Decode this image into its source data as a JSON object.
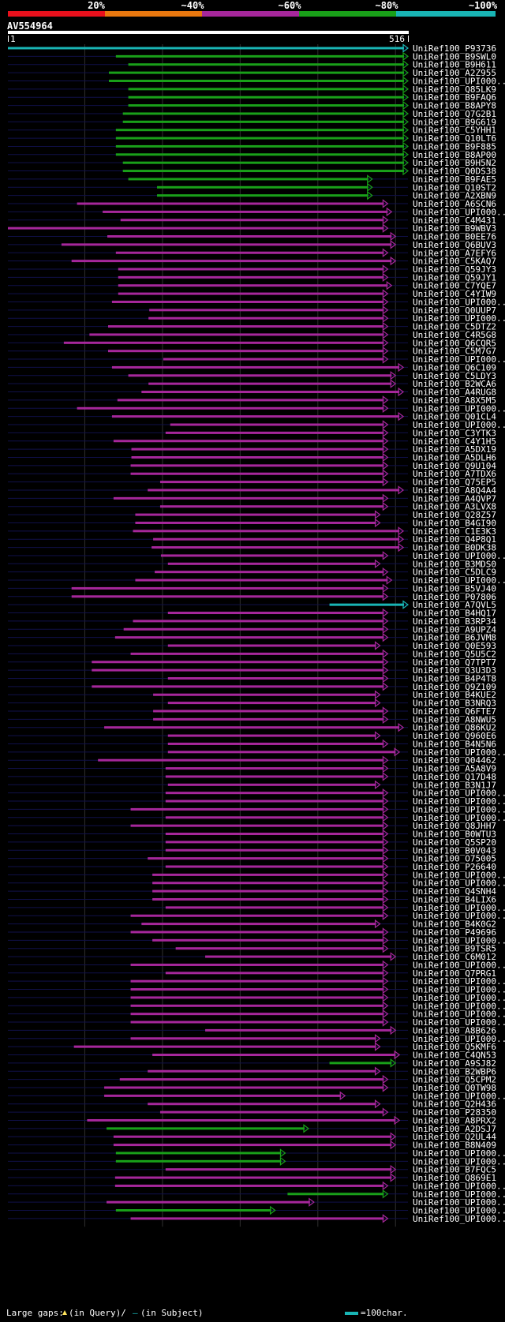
{
  "legend": {
    "segments": [
      {
        "label": "20%",
        "color": "#e8101c"
      },
      {
        "label": "~40%",
        "color": "#e8770e"
      },
      {
        "label": "~60%",
        "color": "#a6279b"
      },
      {
        "label": "~80%",
        "color": "#19a019"
      },
      {
        "label": "~100%",
        "color": "#19b5b5"
      }
    ]
  },
  "query": {
    "name": "AV554964",
    "start_label": "1",
    "end_label": "516"
  },
  "footer": {
    "large_gaps": "Large gaps:",
    "in_query": "(in Query)/",
    "dash": "—",
    "in_subject": "(in Subject)",
    "scale": "=100char."
  },
  "chart_data": {
    "type": "sequence-alignment-overview",
    "title": "AV554964",
    "query_length": 516,
    "axis_range": [
      1,
      516
    ],
    "grid_lines_at": [
      100,
      200,
      300,
      400,
      500
    ],
    "bar_colors": {
      "20": "#e8101c",
      "40": "#e8770e",
      "60": "#a6279b",
      "80": "#19a019",
      "100": "#19b5b5"
    },
    "hits": [
      {
        "id": "UniRef100_P93736",
        "start": 1,
        "end": 516,
        "identity": 100
      },
      {
        "id": "UniRef100_B9SWL0",
        "start": 140,
        "end": 516,
        "identity": 80
      },
      {
        "id": "UniRef100_B9H611",
        "start": 156,
        "end": 516,
        "identity": 80
      },
      {
        "id": "UniRef100_A2Z955",
        "start": 131,
        "end": 516,
        "identity": 80
      },
      {
        "id": "UniRef100_UPI000..",
        "start": 131,
        "end": 516,
        "identity": 80
      },
      {
        "id": "UniRef100_Q85LK9",
        "start": 156,
        "end": 516,
        "identity": 80
      },
      {
        "id": "UniRef100_B9FAQ6",
        "start": 156,
        "end": 516,
        "identity": 80
      },
      {
        "id": "UniRef100_B8APY8",
        "start": 156,
        "end": 516,
        "identity": 80
      },
      {
        "id": "UniRef100_Q7G2B1",
        "start": 149,
        "end": 516,
        "identity": 80
      },
      {
        "id": "UniRef100_B9G619",
        "start": 149,
        "end": 516,
        "identity": 80
      },
      {
        "id": "UniRef100_C5YHH1",
        "start": 140,
        "end": 516,
        "identity": 80
      },
      {
        "id": "UniRef100_Q10LT6",
        "start": 140,
        "end": 516,
        "identity": 80
      },
      {
        "id": "UniRef100_B9F885",
        "start": 140,
        "end": 516,
        "identity": 80
      },
      {
        "id": "UniRef100_B8AP00",
        "start": 140,
        "end": 516,
        "identity": 80
      },
      {
        "id": "UniRef100_B9H5N2",
        "start": 149,
        "end": 516,
        "identity": 80
      },
      {
        "id": "UniRef100_Q0DS38",
        "start": 149,
        "end": 516,
        "identity": 80
      },
      {
        "id": "UniRef100_B9FAE5",
        "start": 156,
        "end": 470,
        "identity": 80
      },
      {
        "id": "UniRef100_Q10ST2",
        "start": 193,
        "end": 470,
        "identity": 80
      },
      {
        "id": "UniRef100_A2XBN9",
        "start": 193,
        "end": 470,
        "identity": 80
      },
      {
        "id": "UniRef100_A6SCN6",
        "start": 90,
        "end": 490,
        "identity": 60
      },
      {
        "id": "UniRef100_UPI000..",
        "start": 123,
        "end": 495,
        "identity": 60
      },
      {
        "id": "UniRef100_C4M431",
        "start": 146,
        "end": 490,
        "identity": 60
      },
      {
        "id": "UniRef100_B9WBV3",
        "start": 1,
        "end": 490,
        "identity": 60
      },
      {
        "id": "UniRef100_B0EE76",
        "start": 129,
        "end": 500,
        "identity": 60
      },
      {
        "id": "UniRef100_Q6BUV3",
        "start": 70,
        "end": 500,
        "identity": 60
      },
      {
        "id": "UniRef100_A7EFY6",
        "start": 140,
        "end": 490,
        "identity": 60
      },
      {
        "id": "UniRef100_C5KAQ7",
        "start": 83,
        "end": 500,
        "identity": 60
      },
      {
        "id": "UniRef100_Q59JY3",
        "start": 143,
        "end": 490,
        "identity": 60
      },
      {
        "id": "UniRef100_Q59JY1",
        "start": 143,
        "end": 490,
        "identity": 60
      },
      {
        "id": "UniRef100_C7YQE7",
        "start": 143,
        "end": 495,
        "identity": 60
      },
      {
        "id": "UniRef100_C4YIW9",
        "start": 143,
        "end": 490,
        "identity": 60
      },
      {
        "id": "UniRef100_UPI000..",
        "start": 135,
        "end": 490,
        "identity": 60
      },
      {
        "id": "UniRef100_Q0UUP7",
        "start": 183,
        "end": 490,
        "identity": 60
      },
      {
        "id": "UniRef100_UPI000..",
        "start": 182,
        "end": 490,
        "identity": 60
      },
      {
        "id": "UniRef100_C5DTZ2",
        "start": 130,
        "end": 490,
        "identity": 60
      },
      {
        "id": "UniRef100_C4R5G8",
        "start": 106,
        "end": 490,
        "identity": 60
      },
      {
        "id": "UniRef100_Q6CQR5",
        "start": 73,
        "end": 490,
        "identity": 60
      },
      {
        "id": "UniRef100_C5M7G7",
        "start": 130,
        "end": 490,
        "identity": 60
      },
      {
        "id": "UniRef100_UPI000..",
        "start": 201,
        "end": 490,
        "identity": 60
      },
      {
        "id": "UniRef100_Q6C109",
        "start": 135,
        "end": 510,
        "identity": 60
      },
      {
        "id": "UniRef100_C5LDY3",
        "start": 156,
        "end": 500,
        "identity": 60
      },
      {
        "id": "UniRef100_B2WCA6",
        "start": 182,
        "end": 500,
        "identity": 60
      },
      {
        "id": "UniRef100_A4RUG8",
        "start": 173,
        "end": 510,
        "identity": 60
      },
      {
        "id": "UniRef100_A8X5M5",
        "start": 142,
        "end": 490,
        "identity": 60
      },
      {
        "id": "UniRef100_UPI000..",
        "start": 90,
        "end": 490,
        "identity": 60
      },
      {
        "id": "UniRef100_Q01CL4",
        "start": 135,
        "end": 510,
        "identity": 60
      },
      {
        "id": "UniRef100_UPI000..",
        "start": 210,
        "end": 490,
        "identity": 60
      },
      {
        "id": "UniRef100_C3YTK3",
        "start": 204,
        "end": 490,
        "identity": 60
      },
      {
        "id": "UniRef100_C4Y1H5",
        "start": 137,
        "end": 490,
        "identity": 60
      },
      {
        "id": "UniRef100_A5DX19",
        "start": 160,
        "end": 490,
        "identity": 60
      },
      {
        "id": "UniRef100_A5DLH6",
        "start": 160,
        "end": 490,
        "identity": 60
      },
      {
        "id": "UniRef100_Q9U104",
        "start": 159,
        "end": 490,
        "identity": 60
      },
      {
        "id": "UniRef100_A7TDX6",
        "start": 159,
        "end": 490,
        "identity": 60
      },
      {
        "id": "UniRef100_Q75EP5",
        "start": 197,
        "end": 490,
        "identity": 60
      },
      {
        "id": "UniRef100_A8Q4A4",
        "start": 181,
        "end": 510,
        "identity": 60
      },
      {
        "id": "UniRef100_A4QVP7",
        "start": 137,
        "end": 490,
        "identity": 60
      },
      {
        "id": "UniRef100_A3LVX8",
        "start": 197,
        "end": 490,
        "identity": 60
      },
      {
        "id": "UniRef100_Q28Z57",
        "start": 165,
        "end": 480,
        "identity": 60
      },
      {
        "id": "UniRef100_B4GI90",
        "start": 165,
        "end": 480,
        "identity": 60
      },
      {
        "id": "UniRef100_C1E3K3",
        "start": 162,
        "end": 510,
        "identity": 60
      },
      {
        "id": "UniRef100_Q4P8Q1",
        "start": 188,
        "end": 510,
        "identity": 60
      },
      {
        "id": "UniRef100_B0DK38",
        "start": 186,
        "end": 510,
        "identity": 60
      },
      {
        "id": "UniRef100_UPI000..",
        "start": 198,
        "end": 490,
        "identity": 60
      },
      {
        "id": "UniRef100_B3MDS0",
        "start": 207,
        "end": 480,
        "identity": 60
      },
      {
        "id": "UniRef100_C5DLC9",
        "start": 190,
        "end": 490,
        "identity": 60
      },
      {
        "id": "UniRef100_UPI000..",
        "start": 165,
        "end": 495,
        "identity": 60
      },
      {
        "id": "UniRef100_B5VJ40",
        "start": 83,
        "end": 490,
        "identity": 60
      },
      {
        "id": "UniRef100_P07806",
        "start": 83,
        "end": 490,
        "identity": 60
      },
      {
        "id": "UniRef100_A7QVL5",
        "start": 415,
        "end": 516,
        "identity": 100
      },
      {
        "id": "UniRef100_B4HQ17",
        "start": 207,
        "end": 490,
        "identity": 60
      },
      {
        "id": "UniRef100_B3RP34",
        "start": 162,
        "end": 490,
        "identity": 60
      },
      {
        "id": "UniRef100_A9UPZ4",
        "start": 150,
        "end": 490,
        "identity": 60
      },
      {
        "id": "UniRef100_B6JVM8",
        "start": 139,
        "end": 490,
        "identity": 60
      },
      {
        "id": "UniRef100_Q0E593",
        "start": 207,
        "end": 480,
        "identity": 60
      },
      {
        "id": "UniRef100_Q5U5C2",
        "start": 159,
        "end": 490,
        "identity": 60
      },
      {
        "id": "UniRef100_Q7TPT7",
        "start": 109,
        "end": 490,
        "identity": 60
      },
      {
        "id": "UniRef100_Q3U3D3",
        "start": 109,
        "end": 490,
        "identity": 60
      },
      {
        "id": "UniRef100_B4P4T8",
        "start": 207,
        "end": 490,
        "identity": 60
      },
      {
        "id": "UniRef100_Q9Z109",
        "start": 109,
        "end": 490,
        "identity": 60
      },
      {
        "id": "UniRef100_B4KUE2",
        "start": 188,
        "end": 480,
        "identity": 60
      },
      {
        "id": "UniRef100_B3NRQ3",
        "start": 207,
        "end": 480,
        "identity": 60
      },
      {
        "id": "UniRef100_Q6FTE7",
        "start": 188,
        "end": 490,
        "identity": 60
      },
      {
        "id": "UniRef100_A8NWU5",
        "start": 188,
        "end": 490,
        "identity": 60
      },
      {
        "id": "UniRef100_Q86KU2",
        "start": 125,
        "end": 510,
        "identity": 60
      },
      {
        "id": "UniRef100_Q960E6",
        "start": 207,
        "end": 480,
        "identity": 60
      },
      {
        "id": "UniRef100_B4N5N6",
        "start": 207,
        "end": 490,
        "identity": 60
      },
      {
        "id": "UniRef100_UPI000..",
        "start": 207,
        "end": 505,
        "identity": 60
      },
      {
        "id": "UniRef100_Q04462",
        "start": 117,
        "end": 490,
        "identity": 60
      },
      {
        "id": "UniRef100_A5A8V9",
        "start": 204,
        "end": 490,
        "identity": 60
      },
      {
        "id": "UniRef100_Q17D48",
        "start": 204,
        "end": 490,
        "identity": 60
      },
      {
        "id": "UniRef100_B3N1J7",
        "start": 207,
        "end": 480,
        "identity": 60
      },
      {
        "id": "UniRef100_UPI000..",
        "start": 204,
        "end": 490,
        "identity": 60
      },
      {
        "id": "UniRef100_UPI000..",
        "start": 204,
        "end": 490,
        "identity": 60
      },
      {
        "id": "UniRef100_UPI000..",
        "start": 159,
        "end": 490,
        "identity": 60
      },
      {
        "id": "UniRef100_UPI000..",
        "start": 204,
        "end": 490,
        "identity": 60
      },
      {
        "id": "UniRef100_Q8JHH7",
        "start": 159,
        "end": 490,
        "identity": 60
      },
      {
        "id": "UniRef100_B0WTU3",
        "start": 204,
        "end": 490,
        "identity": 60
      },
      {
        "id": "UniRef100_Q5SP20",
        "start": 204,
        "end": 490,
        "identity": 60
      },
      {
        "id": "UniRef100_B0V043",
        "start": 204,
        "end": 490,
        "identity": 60
      },
      {
        "id": "UniRef100_O75005",
        "start": 181,
        "end": 490,
        "identity": 60
      },
      {
        "id": "UniRef100_P26640",
        "start": 204,
        "end": 490,
        "identity": 60
      },
      {
        "id": "UniRef100_UPI000..",
        "start": 187,
        "end": 490,
        "identity": 60
      },
      {
        "id": "UniRef100_UPI000..",
        "start": 187,
        "end": 490,
        "identity": 60
      },
      {
        "id": "UniRef100_Q4SNH4",
        "start": 187,
        "end": 490,
        "identity": 60
      },
      {
        "id": "UniRef100_B4LIX6",
        "start": 187,
        "end": 490,
        "identity": 60
      },
      {
        "id": "UniRef100_UPI000..",
        "start": 204,
        "end": 490,
        "identity": 60
      },
      {
        "id": "UniRef100_UPI000..",
        "start": 159,
        "end": 490,
        "identity": 60
      },
      {
        "id": "UniRef100_B4K0G2",
        "start": 173,
        "end": 480,
        "identity": 60
      },
      {
        "id": "UniRef100_P49696",
        "start": 159,
        "end": 490,
        "identity": 60
      },
      {
        "id": "UniRef100_UPI000..",
        "start": 187,
        "end": 490,
        "identity": 60
      },
      {
        "id": "UniRef100_B9TSR5",
        "start": 217,
        "end": 490,
        "identity": 60
      },
      {
        "id": "UniRef100_C6M012",
        "start": 255,
        "end": 500,
        "identity": 60
      },
      {
        "id": "UniRef100_UPI000..",
        "start": 159,
        "end": 490,
        "identity": 60
      },
      {
        "id": "UniRef100_Q7PRG1",
        "start": 204,
        "end": 490,
        "identity": 60
      },
      {
        "id": "UniRef100_UPI000..",
        "start": 159,
        "end": 490,
        "identity": 60
      },
      {
        "id": "UniRef100_UPI000..",
        "start": 159,
        "end": 490,
        "identity": 60
      },
      {
        "id": "UniRef100_UPI000..",
        "start": 159,
        "end": 490,
        "identity": 60
      },
      {
        "id": "UniRef100_UPI000..",
        "start": 159,
        "end": 490,
        "identity": 60
      },
      {
        "id": "UniRef100_UPI000..",
        "start": 159,
        "end": 490,
        "identity": 60
      },
      {
        "id": "UniRef100_UPI000..",
        "start": 159,
        "end": 490,
        "identity": 60
      },
      {
        "id": "UniRef100_A8B626",
        "start": 255,
        "end": 500,
        "identity": 60
      },
      {
        "id": "UniRef100_UPI000..",
        "start": 159,
        "end": 480,
        "identity": 60
      },
      {
        "id": "UniRef100_Q5KMF6",
        "start": 86,
        "end": 480,
        "identity": 60
      },
      {
        "id": "UniRef100_C4QN53",
        "start": 187,
        "end": 505,
        "identity": 60
      },
      {
        "id": "UniRef100_A9SJ82",
        "start": 415,
        "end": 500,
        "identity": 80
      },
      {
        "id": "UniRef100_B2WBP6",
        "start": 181,
        "end": 480,
        "identity": 60
      },
      {
        "id": "UniRef100_Q5CPM2",
        "start": 145,
        "end": 490,
        "identity": 60
      },
      {
        "id": "UniRef100_Q0TW98",
        "start": 125,
        "end": 490,
        "identity": 60
      },
      {
        "id": "UniRef100_UPI000..",
        "start": 125,
        "end": 435,
        "identity": 60
      },
      {
        "id": "UniRef100_Q2H436",
        "start": 181,
        "end": 480,
        "identity": 60
      },
      {
        "id": "UniRef100_P28350",
        "start": 197,
        "end": 490,
        "identity": 60
      },
      {
        "id": "UniRef100_A8PRX2",
        "start": 103,
        "end": 505,
        "identity": 60
      },
      {
        "id": "UniRef100_A2DSJ7",
        "start": 128,
        "end": 388,
        "identity": 80
      },
      {
        "id": "UniRef100_Q2UL44",
        "start": 137,
        "end": 500,
        "identity": 60
      },
      {
        "id": "UniRef100_B8N409",
        "start": 137,
        "end": 500,
        "identity": 60
      },
      {
        "id": "UniRef100_UPI000..",
        "start": 140,
        "end": 358,
        "identity": 80
      },
      {
        "id": "UniRef100_UPI000..",
        "start": 140,
        "end": 358,
        "identity": 80
      },
      {
        "id": "UniRef100_B7FQC5",
        "start": 204,
        "end": 500,
        "identity": 60
      },
      {
        "id": "UniRef100_Q869E1",
        "start": 139,
        "end": 500,
        "identity": 60
      },
      {
        "id": "UniRef100_UPI000..",
        "start": 139,
        "end": 490,
        "identity": 60
      },
      {
        "id": "UniRef100_UPI000..",
        "start": 361,
        "end": 490,
        "identity": 80
      },
      {
        "id": "UniRef100_UPI000..",
        "start": 128,
        "end": 395,
        "identity": 60
      },
      {
        "id": "UniRef100_UPI000..",
        "start": 140,
        "end": 345,
        "identity": 80
      },
      {
        "id": "UniRef100_UPI000..",
        "start": 159,
        "end": 490,
        "identity": 60
      }
    ]
  }
}
